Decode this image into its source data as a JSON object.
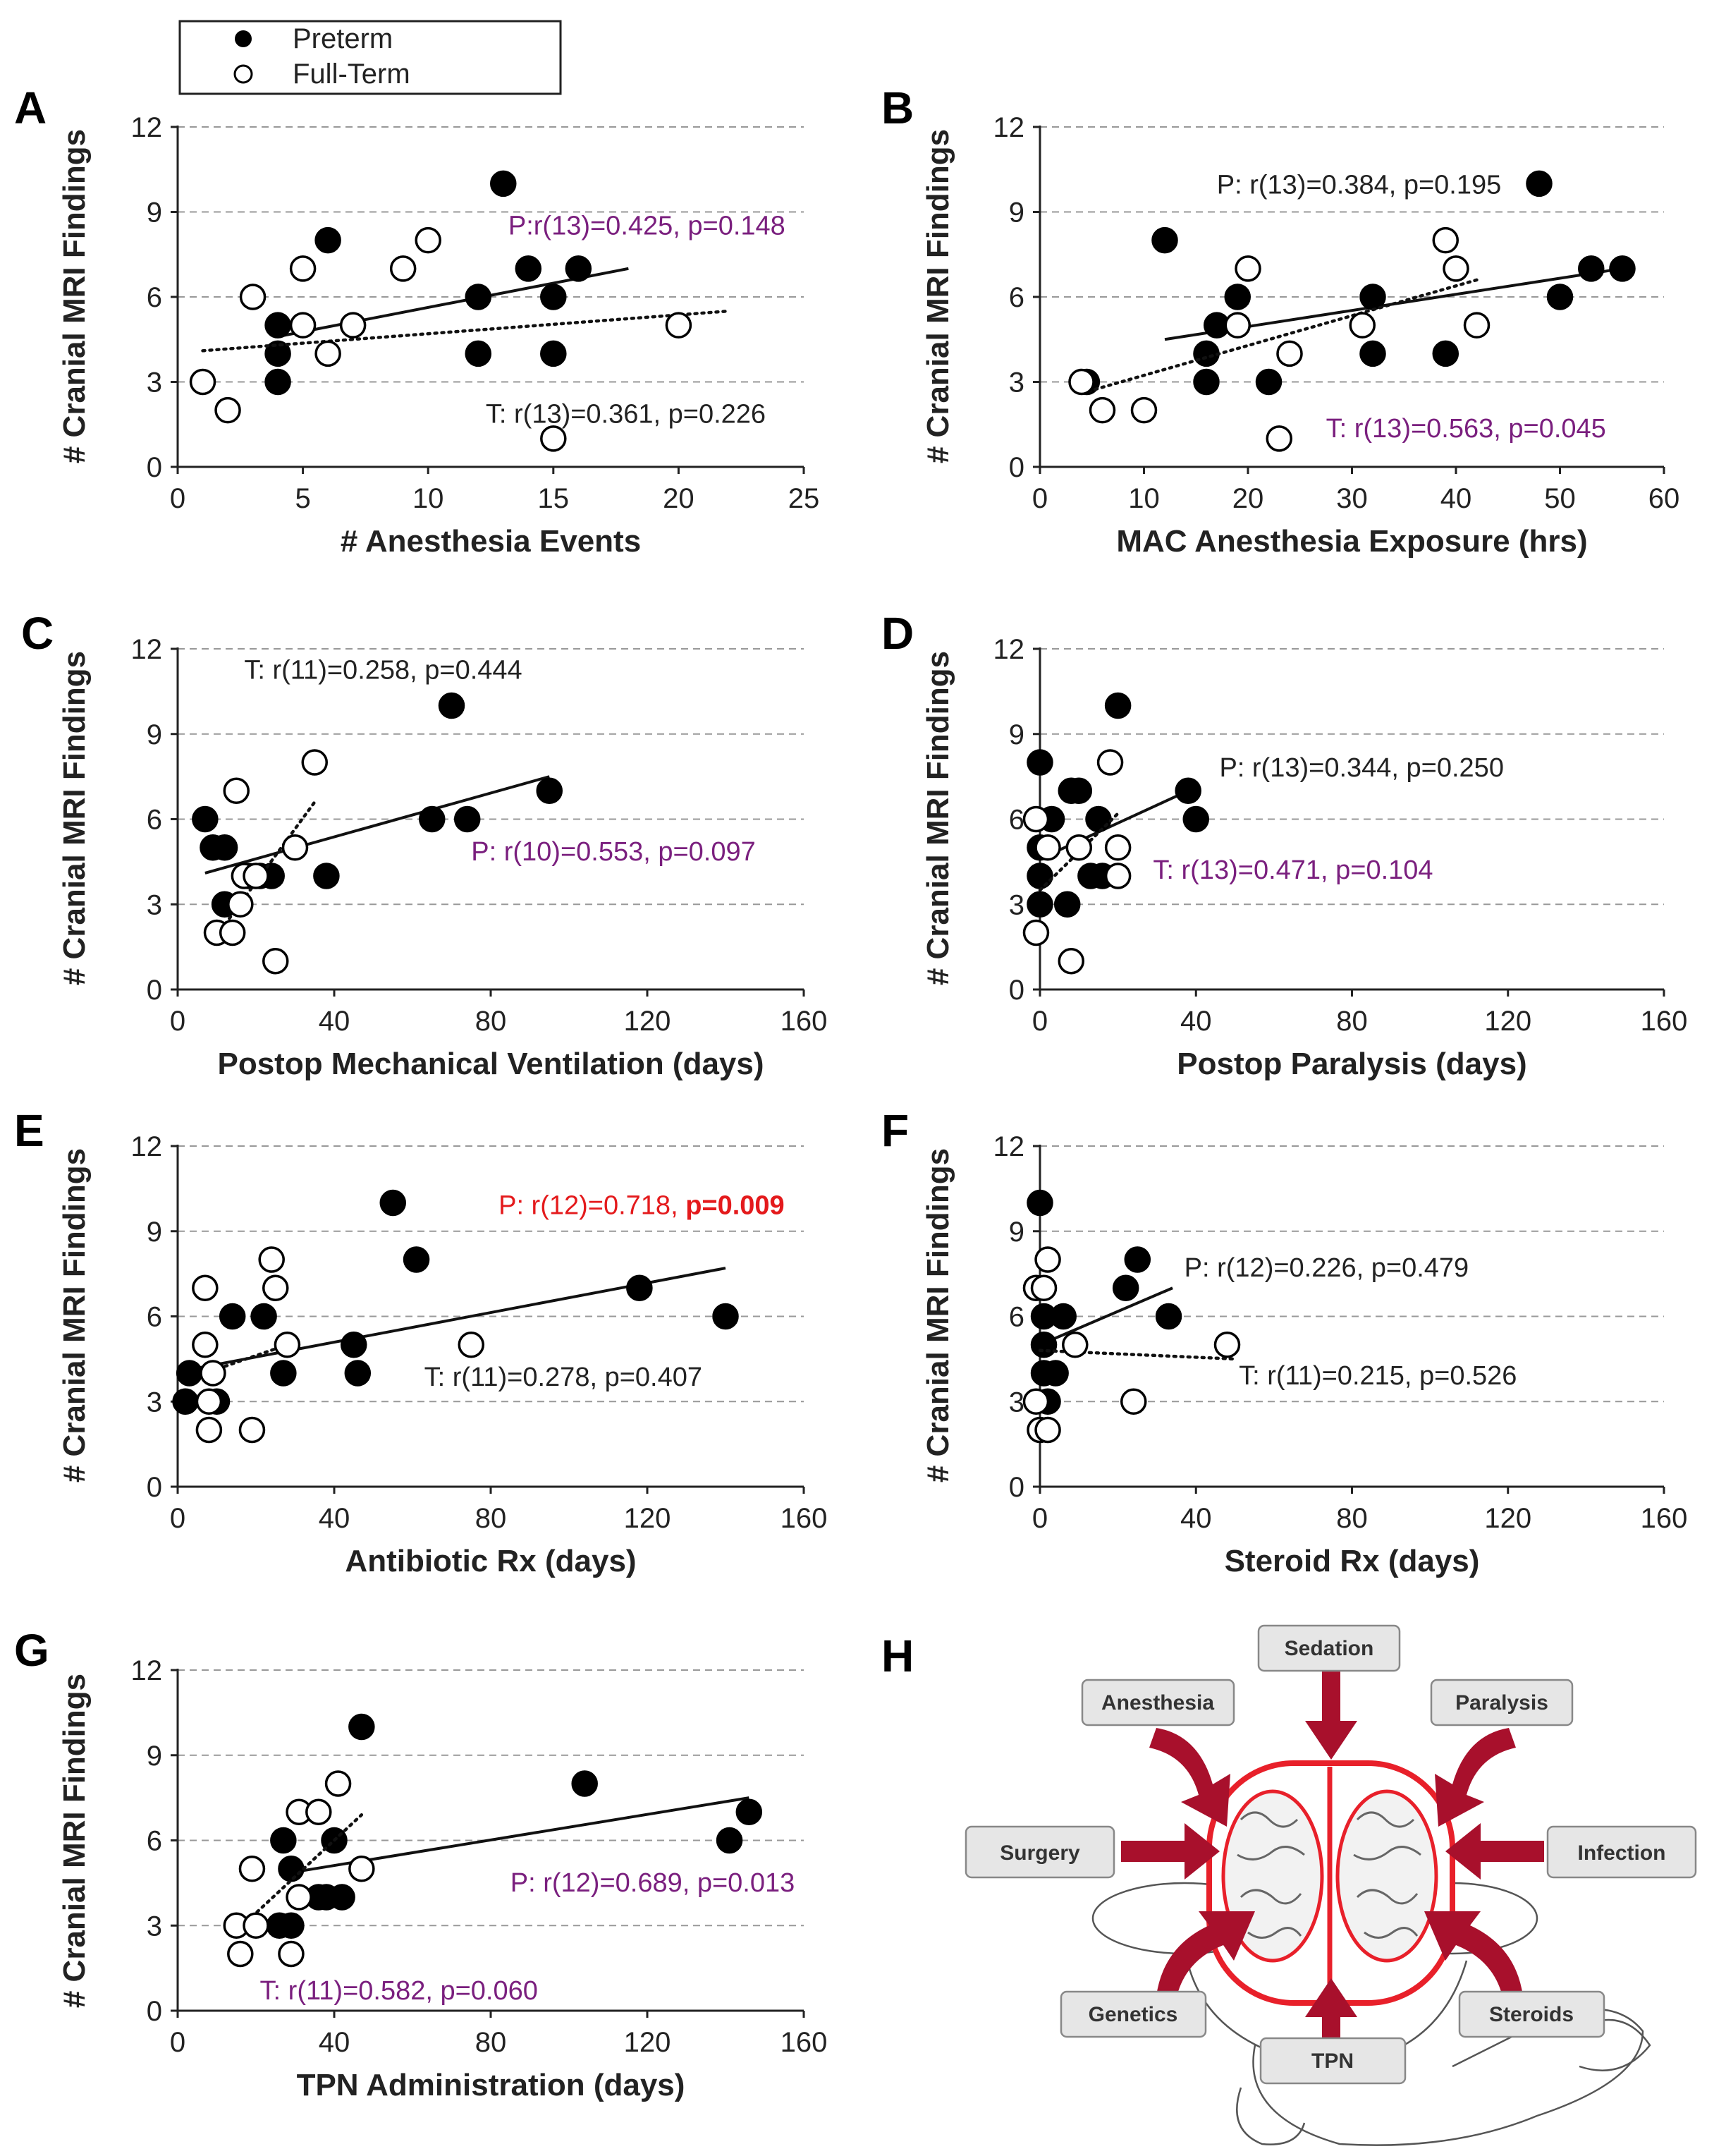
{
  "legend": {
    "preterm": "Preterm",
    "fullterm": "Full-Term"
  },
  "colors": {
    "normal": "#222222",
    "purple": "#7a1f7e",
    "red": "#e41a1c",
    "arrow": "#a8102c",
    "brain": "#e8202a",
    "box_fill": "#e6e6e6",
    "grid": "#999999"
  },
  "chart_data": [
    {
      "panel": "A",
      "type": "scatter",
      "xlabel": "# Anesthesia Events",
      "ylabel": "# Cranial MRI Findings",
      "xlim": [
        0,
        25
      ],
      "ylim": [
        0,
        12
      ],
      "xticks": [
        0,
        5,
        10,
        15,
        20,
        25
      ],
      "yticks": [
        0,
        3,
        6,
        9,
        12
      ],
      "series": [
        {
          "name": "Preterm",
          "filled": true,
          "points": [
            [
              4,
              5
            ],
            [
              4,
              4
            ],
            [
              4,
              3
            ],
            [
              6,
              8
            ],
            [
              12,
              6
            ],
            [
              12,
              4
            ],
            [
              13,
              10
            ],
            [
              14,
              7
            ],
            [
              15,
              6
            ],
            [
              15,
              4
            ],
            [
              16,
              7
            ]
          ],
          "trend": [
            [
              4,
              4.6
            ],
            [
              18,
              7
            ]
          ],
          "trend_style": "solid"
        },
        {
          "name": "Full-Term",
          "filled": false,
          "points": [
            [
              1,
              3
            ],
            [
              2,
              2
            ],
            [
              3,
              6
            ],
            [
              5,
              7
            ],
            [
              5,
              5
            ],
            [
              6,
              4
            ],
            [
              7,
              5
            ],
            [
              9,
              7
            ],
            [
              10,
              8
            ],
            [
              15,
              1
            ],
            [
              20,
              5
            ]
          ],
          "trend": [
            [
              1,
              4.1
            ],
            [
              22,
              5.5
            ]
          ],
          "trend_style": "dotted"
        }
      ],
      "annotations": [
        {
          "text": "P:r(13)=0.425, p=0.148",
          "x": 13.2,
          "y": 8.2,
          "color": "purple"
        },
        {
          "text": "T: r(13)=0.361, p=0.226",
          "x": 12.3,
          "y": 1.55,
          "color": "normal"
        }
      ]
    },
    {
      "panel": "B",
      "type": "scatter",
      "xlabel": "MAC Anesthesia Exposure (hrs)",
      "ylabel": "# Cranial MRI Findings",
      "xlim": [
        0,
        60
      ],
      "ylim": [
        0,
        12
      ],
      "xticks": [
        0,
        10,
        20,
        30,
        40,
        50,
        60
      ],
      "yticks": [
        0,
        3,
        6,
        9,
        12
      ],
      "series": [
        {
          "name": "Preterm",
          "filled": true,
          "points": [
            [
              4.5,
              3
            ],
            [
              12,
              8
            ],
            [
              16,
              4
            ],
            [
              16,
              3
            ],
            [
              17,
              5
            ],
            [
              19,
              6
            ],
            [
              22,
              3
            ],
            [
              32,
              6
            ],
            [
              32,
              4
            ],
            [
              39,
              4
            ],
            [
              48,
              10
            ],
            [
              50,
              6
            ],
            [
              53,
              7
            ],
            [
              56,
              7
            ]
          ],
          "trend": [
            [
              12,
              4.5
            ],
            [
              56,
              7
            ]
          ],
          "trend_style": "solid"
        },
        {
          "name": "Full-Term",
          "filled": false,
          "points": [
            [
              4,
              3
            ],
            [
              6,
              2
            ],
            [
              10,
              2
            ],
            [
              19,
              5
            ],
            [
              20,
              7
            ],
            [
              24,
              4
            ],
            [
              23,
              1
            ],
            [
              31,
              5
            ],
            [
              39,
              8
            ],
            [
              40,
              7
            ],
            [
              42,
              5
            ]
          ],
          "trend": [
            [
              4,
              2.6
            ],
            [
              42,
              6.6
            ]
          ],
          "trend_style": "dotted"
        }
      ],
      "annotations": [
        {
          "text": "P: r(13)=0.384, p=0.195",
          "x": 17,
          "y": 9.65,
          "color": "normal"
        },
        {
          "text": "T: r(13)=0.563, p=0.045",
          "x": 27.5,
          "y": 1.05,
          "color": "purple"
        }
      ]
    },
    {
      "panel": "C",
      "type": "scatter",
      "xlabel": "Postop Mechanical Ventilation (days)",
      "ylabel": "# Cranial MRI Findings",
      "xlim": [
        0,
        160
      ],
      "ylim": [
        0,
        12
      ],
      "xticks": [
        0,
        40,
        80,
        120,
        160
      ],
      "yticks": [
        0,
        3,
        6,
        9,
        12
      ],
      "series": [
        {
          "name": "Preterm",
          "filled": true,
          "points": [
            [
              7,
              6
            ],
            [
              9,
              5
            ],
            [
              12,
              5
            ],
            [
              12,
              3
            ],
            [
              18,
              4
            ],
            [
              21,
              4
            ],
            [
              24,
              4
            ],
            [
              38,
              4
            ],
            [
              65,
              6
            ],
            [
              70,
              10
            ],
            [
              74,
              6
            ],
            [
              95,
              7
            ]
          ],
          "trend": [
            [
              7,
              4.1
            ],
            [
              95,
              7.5
            ]
          ],
          "trend_style": "solid"
        },
        {
          "name": "Full-Term",
          "filled": false,
          "points": [
            [
              10,
              2
            ],
            [
              14,
              2
            ],
            [
              15,
              7
            ],
            [
              16,
              3
            ],
            [
              17,
              4
            ],
            [
              20,
              4
            ],
            [
              25,
              1
            ],
            [
              30,
              5
            ],
            [
              35,
              8
            ]
          ],
          "trend": [
            [
              10,
              1.9
            ],
            [
              35,
              6.6
            ]
          ],
          "trend_style": "dotted"
        }
      ],
      "annotations": [
        {
          "text": "T: r(11)=0.258, p=0.444",
          "x": 17,
          "y": 10.95,
          "color": "normal"
        },
        {
          "text": "P: r(10)=0.553, p=0.097",
          "x": 75,
          "y": 4.55,
          "color": "purple"
        }
      ]
    },
    {
      "panel": "D",
      "type": "scatter",
      "xlabel": "Postop Paralysis (days)",
      "ylabel": "# Cranial MRI Findings",
      "xlim": [
        0,
        160
      ],
      "ylim": [
        0,
        12
      ],
      "xticks": [
        0,
        40,
        80,
        120,
        160
      ],
      "yticks": [
        0,
        3,
        6,
        9,
        12
      ],
      "series": [
        {
          "name": "Preterm",
          "filled": true,
          "points": [
            [
              0,
              8
            ],
            [
              0,
              5
            ],
            [
              0,
              4
            ],
            [
              0,
              3
            ],
            [
              3,
              6
            ],
            [
              7,
              3
            ],
            [
              8,
              7
            ],
            [
              10,
              7
            ],
            [
              13,
              4
            ],
            [
              15,
              6
            ],
            [
              16,
              4
            ],
            [
              20,
              10
            ],
            [
              38,
              7
            ],
            [
              40,
              6
            ]
          ],
          "trend": [
            [
              0,
              4.6
            ],
            [
              38,
              7
            ]
          ],
          "trend_style": "solid"
        },
        {
          "name": "Full-Term",
          "filled": false,
          "points": [
            [
              -1,
              6
            ],
            [
              -1,
              2
            ],
            [
              2,
              5
            ],
            [
              8,
              1
            ],
            [
              10,
              5
            ],
            [
              18,
              8
            ],
            [
              20,
              5
            ],
            [
              20,
              4
            ]
          ],
          "trend": [
            [
              0,
              3.5
            ],
            [
              20,
              6.2
            ]
          ],
          "trend_style": "dotted"
        }
      ],
      "annotations": [
        {
          "text": "P: r(13)=0.344, p=0.250",
          "x": 46,
          "y": 7.5,
          "color": "normal"
        },
        {
          "text": "T: r(13)=0.471, p=0.104",
          "x": 29,
          "y": 3.9,
          "color": "purple"
        }
      ]
    },
    {
      "panel": "E",
      "type": "scatter",
      "xlabel": "Antibiotic Rx (days)",
      "ylabel": "# Cranial MRI Findings",
      "xlim": [
        0,
        160
      ],
      "ylim": [
        0,
        12
      ],
      "xticks": [
        0,
        40,
        80,
        120,
        160
      ],
      "yticks": [
        0,
        3,
        6,
        9,
        12
      ],
      "series": [
        {
          "name": "Preterm",
          "filled": true,
          "points": [
            [
              2,
              3
            ],
            [
              3,
              4
            ],
            [
              10,
              3
            ],
            [
              14,
              6
            ],
            [
              22,
              6
            ],
            [
              27,
              4
            ],
            [
              45,
              5
            ],
            [
              46,
              4
            ],
            [
              55,
              10
            ],
            [
              61,
              8
            ],
            [
              118,
              7
            ],
            [
              140,
              6
            ]
          ],
          "trend": [
            [
              2,
              4.1
            ],
            [
              140,
              7.7
            ]
          ],
          "trend_style": "solid"
        },
        {
          "name": "Full-Term",
          "filled": false,
          "points": [
            [
              7,
              7
            ],
            [
              7,
              5
            ],
            [
              8,
              3
            ],
            [
              8,
              2
            ],
            [
              9,
              4
            ],
            [
              19,
              2
            ],
            [
              24,
              8
            ],
            [
              25,
              7
            ],
            [
              28,
              5
            ],
            [
              75,
              5
            ]
          ],
          "trend": [
            [
              7,
              4
            ],
            [
              28,
              5
            ]
          ],
          "trend_style": "dotted"
        }
      ],
      "annotations": [
        {
          "text": "P: r(12)=0.718, ",
          "bold_text": "p=0.009",
          "x": 82,
          "y": 9.6,
          "color": "red"
        },
        {
          "text": "T: r(11)=0.278, p=0.407",
          "x": 63,
          "y": 3.55,
          "color": "normal"
        }
      ]
    },
    {
      "panel": "F",
      "type": "scatter",
      "xlabel": "Steroid Rx (days)",
      "ylabel": "# Cranial MRI Findings",
      "xlim": [
        0,
        160
      ],
      "ylim": [
        0,
        12
      ],
      "xticks": [
        0,
        40,
        80,
        120,
        160
      ],
      "yticks": [
        0,
        3,
        6,
        9,
        12
      ],
      "series": [
        {
          "name": "Preterm",
          "filled": true,
          "points": [
            [
              0,
              10
            ],
            [
              1,
              6
            ],
            [
              1,
              5
            ],
            [
              1,
              4
            ],
            [
              2,
              3
            ],
            [
              4,
              4
            ],
            [
              6,
              6
            ],
            [
              22,
              7
            ],
            [
              25,
              8
            ],
            [
              33,
              6
            ]
          ],
          "trend": [
            [
              0,
              5
            ],
            [
              34,
              7
            ]
          ],
          "trend_style": "solid"
        },
        {
          "name": "Full-Term",
          "filled": false,
          "points": [
            [
              -1,
              7
            ],
            [
              -1,
              3
            ],
            [
              0,
              2
            ],
            [
              1,
              7
            ],
            [
              2,
              8
            ],
            [
              2,
              2
            ],
            [
              9,
              5
            ],
            [
              24,
              3
            ],
            [
              48,
              5
            ]
          ],
          "trend": [
            [
              0,
              4.8
            ],
            [
              50,
              4.5
            ]
          ],
          "trend_style": "dotted"
        }
      ],
      "annotations": [
        {
          "text": "P: r(12)=0.226, p=0.479",
          "x": 37,
          "y": 7.4,
          "color": "normal"
        },
        {
          "text": "T: r(11)=0.215, p=0.526",
          "x": 51,
          "y": 3.6,
          "color": "normal"
        }
      ]
    },
    {
      "panel": "G",
      "type": "scatter",
      "xlabel": "TPN Administration (days)",
      "ylabel": "# Cranial MRI Findings",
      "xlim": [
        0,
        160
      ],
      "ylim": [
        0,
        12
      ],
      "xticks": [
        0,
        40,
        80,
        120,
        160
      ],
      "yticks": [
        0,
        3,
        6,
        9,
        12
      ],
      "series": [
        {
          "name": "Preterm",
          "filled": true,
          "points": [
            [
              26,
              3
            ],
            [
              27,
              6
            ],
            [
              29,
              5
            ],
            [
              29,
              3
            ],
            [
              36,
              4
            ],
            [
              38,
              4
            ],
            [
              40,
              6
            ],
            [
              42,
              4
            ],
            [
              47,
              10
            ],
            [
              104,
              8
            ],
            [
              141,
              6
            ],
            [
              146,
              7
            ]
          ],
          "trend": [
            [
              26,
              4.8
            ],
            [
              146,
              7.5
            ]
          ],
          "trend_style": "solid"
        },
        {
          "name": "Full-Term",
          "filled": false,
          "points": [
            [
              15,
              3
            ],
            [
              16,
              2
            ],
            [
              19,
              5
            ],
            [
              20,
              3
            ],
            [
              29,
              2
            ],
            [
              31,
              7
            ],
            [
              31,
              4
            ],
            [
              36,
              7
            ],
            [
              41,
              8
            ],
            [
              47,
              5
            ]
          ],
          "trend": [
            [
              15,
              2.8
            ],
            [
              47,
              6.9
            ]
          ],
          "trend_style": "dotted"
        }
      ],
      "annotations": [
        {
          "text": "P: r(12)=0.689, p=0.013",
          "x": 85,
          "y": 4.2,
          "color": "purple"
        },
        {
          "text": "T: r(11)=0.582, p=0.060",
          "x": 21,
          "y": 0.4,
          "color": "purple"
        }
      ]
    }
  ],
  "diagram": {
    "panel": "H",
    "labels": [
      "Sedation",
      "Anesthesia",
      "Paralysis",
      "Surgery",
      "Infection",
      "Genetics",
      "Steroids",
      "TPN"
    ]
  }
}
